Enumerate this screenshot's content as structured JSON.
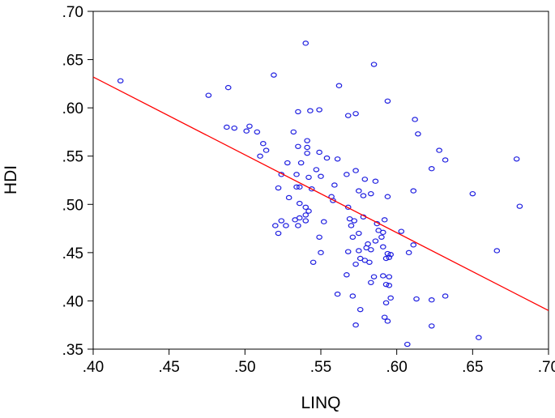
{
  "chart_data": {
    "type": "scatter",
    "title": "",
    "xlabel": "LINQ",
    "ylabel": "HDI",
    "xlim": [
      0.4,
      0.7
    ],
    "ylim": [
      0.35,
      0.7
    ],
    "x_ticks": [
      ".40",
      ".45",
      ".50",
      ".55",
      ".60",
      ".65",
      ".70"
    ],
    "y_ticks": [
      ".35",
      ".40",
      ".45",
      ".50",
      ".55",
      ".60",
      ".65",
      ".70"
    ],
    "grid": false,
    "legend": "none",
    "point_color": "#1f1fe0",
    "line_color": "#ff0000",
    "fit_line": {
      "x": [
        0.4,
        0.7
      ],
      "y": [
        0.632,
        0.39
      ]
    },
    "points": [
      [
        0.418,
        0.628
      ],
      [
        0.476,
        0.613
      ],
      [
        0.489,
        0.621
      ],
      [
        0.488,
        0.58
      ],
      [
        0.493,
        0.579
      ],
      [
        0.503,
        0.581
      ],
      [
        0.501,
        0.576
      ],
      [
        0.508,
        0.575
      ],
      [
        0.512,
        0.563
      ],
      [
        0.514,
        0.556
      ],
      [
        0.51,
        0.55
      ],
      [
        0.519,
        0.634
      ],
      [
        0.54,
        0.667
      ],
      [
        0.532,
        0.575
      ],
      [
        0.535,
        0.596
      ],
      [
        0.543,
        0.597
      ],
      [
        0.549,
        0.598
      ],
      [
        0.528,
        0.543
      ],
      [
        0.535,
        0.56
      ],
      [
        0.541,
        0.566
      ],
      [
        0.541,
        0.559
      ],
      [
        0.541,
        0.553
      ],
      [
        0.537,
        0.543
      ],
      [
        0.547,
        0.536
      ],
      [
        0.549,
        0.554
      ],
      [
        0.55,
        0.529
      ],
      [
        0.542,
        0.528
      ],
      [
        0.524,
        0.531
      ],
      [
        0.534,
        0.531
      ],
      [
        0.534,
        0.518
      ],
      [
        0.536,
        0.518
      ],
      [
        0.544,
        0.516
      ],
      [
        0.522,
        0.517
      ],
      [
        0.529,
        0.507
      ],
      [
        0.536,
        0.501
      ],
      [
        0.54,
        0.497
      ],
      [
        0.542,
        0.493
      ],
      [
        0.524,
        0.483
      ],
      [
        0.527,
        0.478
      ],
      [
        0.52,
        0.478
      ],
      [
        0.522,
        0.47
      ],
      [
        0.533,
        0.484
      ],
      [
        0.536,
        0.486
      ],
      [
        0.54,
        0.489
      ],
      [
        0.54,
        0.483
      ],
      [
        0.535,
        0.478
      ],
      [
        0.552,
        0.482
      ],
      [
        0.549,
        0.466
      ],
      [
        0.55,
        0.45
      ],
      [
        0.545,
        0.44
      ],
      [
        0.554,
        0.548
      ],
      [
        0.561,
        0.547
      ],
      [
        0.562,
        0.623
      ],
      [
        0.573,
        0.594
      ],
      [
        0.568,
        0.592
      ],
      [
        0.585,
        0.645
      ],
      [
        0.594,
        0.607
      ],
      [
        0.612,
        0.588
      ],
      [
        0.614,
        0.573
      ],
      [
        0.628,
        0.556
      ],
      [
        0.632,
        0.546
      ],
      [
        0.623,
        0.537
      ],
      [
        0.611,
        0.514
      ],
      [
        0.65,
        0.511
      ],
      [
        0.679,
        0.547
      ],
      [
        0.681,
        0.498
      ],
      [
        0.666,
        0.452
      ],
      [
        0.573,
        0.535
      ],
      [
        0.567,
        0.531
      ],
      [
        0.579,
        0.526
      ],
      [
        0.586,
        0.524
      ],
      [
        0.575,
        0.514
      ],
      [
        0.578,
        0.509
      ],
      [
        0.583,
        0.511
      ],
      [
        0.594,
        0.508
      ],
      [
        0.559,
        0.52
      ],
      [
        0.557,
        0.508
      ],
      [
        0.558,
        0.504
      ],
      [
        0.568,
        0.497
      ],
      [
        0.578,
        0.487
      ],
      [
        0.572,
        0.483
      ],
      [
        0.569,
        0.485
      ],
      [
        0.57,
        0.478
      ],
      [
        0.575,
        0.47
      ],
      [
        0.571,
        0.466
      ],
      [
        0.587,
        0.48
      ],
      [
        0.592,
        0.484
      ],
      [
        0.588,
        0.473
      ],
      [
        0.591,
        0.471
      ],
      [
        0.586,
        0.462
      ],
      [
        0.59,
        0.466
      ],
      [
        0.581,
        0.459
      ],
      [
        0.58,
        0.455
      ],
      [
        0.583,
        0.453
      ],
      [
        0.575,
        0.452
      ],
      [
        0.568,
        0.451
      ],
      [
        0.576,
        0.444
      ],
      [
        0.579,
        0.442
      ],
      [
        0.573,
        0.438
      ],
      [
        0.582,
        0.44
      ],
      [
        0.591,
        0.456
      ],
      [
        0.594,
        0.449
      ],
      [
        0.596,
        0.448
      ],
      [
        0.595,
        0.445
      ],
      [
        0.593,
        0.444
      ],
      [
        0.603,
        0.472
      ],
      [
        0.611,
        0.458
      ],
      [
        0.608,
        0.45
      ],
      [
        0.585,
        0.425
      ],
      [
        0.591,
        0.426
      ],
      [
        0.595,
        0.425
      ],
      [
        0.583,
        0.419
      ],
      [
        0.593,
        0.417
      ],
      [
        0.595,
        0.416
      ],
      [
        0.567,
        0.427
      ],
      [
        0.561,
        0.407
      ],
      [
        0.571,
        0.405
      ],
      [
        0.576,
        0.391
      ],
      [
        0.593,
        0.398
      ],
      [
        0.596,
        0.403
      ],
      [
        0.592,
        0.383
      ],
      [
        0.594,
        0.379
      ],
      [
        0.573,
        0.375
      ],
      [
        0.613,
        0.402
      ],
      [
        0.623,
        0.401
      ],
      [
        0.632,
        0.405
      ],
      [
        0.623,
        0.374
      ],
      [
        0.654,
        0.362
      ],
      [
        0.607,
        0.355
      ]
    ]
  }
}
